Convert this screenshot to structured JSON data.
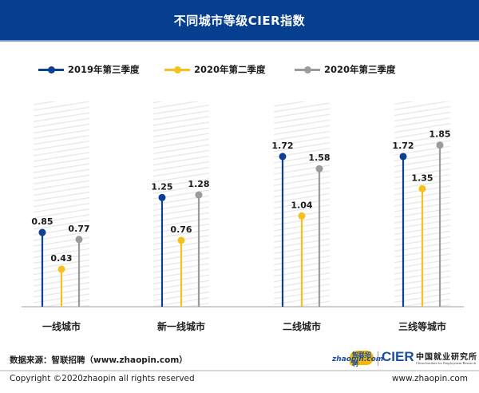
{
  "header": {
    "title": "不同城市等级CIER指数"
  },
  "legend": [
    {
      "label": "2019年第三季度",
      "color": "#0d3f96"
    },
    {
      "label": "2020年第二季度",
      "color": "#f5c11a"
    },
    {
      "label": "2020年第三季度",
      "color": "#9b9b9b"
    }
  ],
  "chart_data": {
    "type": "lollipop",
    "title": "不同城市等级CIER指数",
    "categories": [
      "一线城市",
      "新一线城市",
      "二线城市",
      "三线等城市"
    ],
    "series": [
      {
        "name": "2019年第三季度",
        "color": "#0d3f96",
        "values": [
          0.85,
          1.25,
          1.72,
          1.72
        ],
        "labels": [
          "0.85",
          "1.25",
          "1.72",
          "1.72"
        ]
      },
      {
        "name": "2020年第二季度",
        "color": "#f5c11a",
        "values": [
          0.43,
          0.76,
          1.04,
          1.35
        ],
        "labels": [
          "0.43",
          "0.76",
          "1.04",
          "1.35"
        ]
      },
      {
        "name": "2020年第三季度",
        "color": "#9b9b9b",
        "values": [
          0.77,
          1.28,
          1.58,
          1.85
        ],
        "labels": [
          "0.77",
          "1.28",
          "1.58",
          "1.85"
        ]
      }
    ],
    "ylim": [
      0,
      2.35
    ],
    "xlabel": "",
    "ylabel": "",
    "grid": false,
    "legend_position": "top"
  },
  "footer": {
    "source": "数据来源：智联招聘（www.zhaopin.com）",
    "copyright": "Copyright ©2020zhaopin all rights reserved",
    "url": "www.zhaopin.com",
    "logo_zhaopin_text": "zhaopin.com",
    "logo_zhaopin_cn": "智联招聘",
    "logo_cier": "CIER",
    "logo_cier_cn": "中国就业研究所",
    "logo_cier_en": "China Institute for Employment Research"
  }
}
